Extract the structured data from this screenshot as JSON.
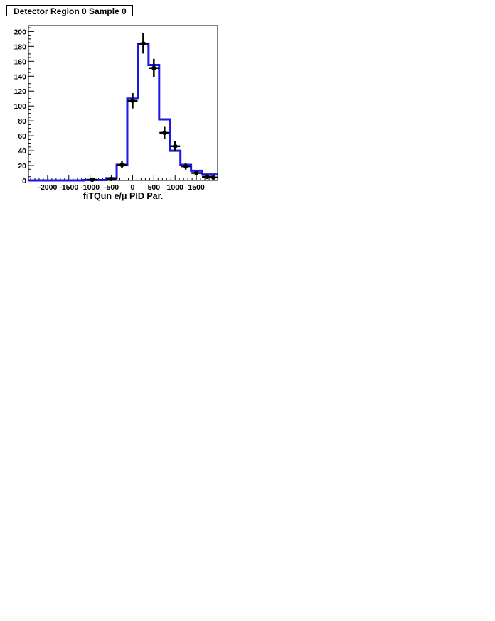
{
  "chart_data": {
    "type": "histogram",
    "title": "Detector Region 0 Sample 0",
    "xlabel": "fiTQun e/μ PID Par.",
    "ylabel": "",
    "xlim": [
      -2450,
      2000
    ],
    "ylim": [
      0,
      208
    ],
    "grid": false,
    "x_ticks": [
      -2000,
      -1500,
      -1000,
      -500,
      0,
      500,
      1000,
      1500
    ],
    "y_ticks": [
      0,
      20,
      40,
      60,
      80,
      100,
      120,
      140,
      160,
      180,
      200
    ],
    "bin_edges": [
      -2450,
      -1150,
      -625,
      -375,
      -125,
      125,
      375,
      625,
      875,
      1125,
      1375,
      1625,
      2000
    ],
    "mc_values": [
      0,
      0.5,
      3,
      21,
      110,
      183,
      155,
      82,
      40,
      21,
      13,
      8
    ],
    "mc_color": "#1a1ae6",
    "data_points": [
      {
        "x": -950,
        "y": 1,
        "err": 1
      },
      {
        "x": -500,
        "y": 2,
        "err": 1.4
      },
      {
        "x": -250,
        "y": 21,
        "err": 4.6
      },
      {
        "x": 0,
        "y": 107,
        "err": 10.3
      },
      {
        "x": 250,
        "y": 184,
        "err": 13.6
      },
      {
        "x": 500,
        "y": 151,
        "err": 12.3
      },
      {
        "x": 750,
        "y": 64,
        "err": 8
      },
      {
        "x": 1000,
        "y": 46,
        "err": 6.8
      },
      {
        "x": 1250,
        "y": 19,
        "err": 4.4
      },
      {
        "x": 1500,
        "y": 10,
        "err": 3.2
      },
      {
        "x": 1750,
        "y": 5,
        "err": 2.2
      },
      {
        "x": 1900,
        "y": 4,
        "err": 2
      }
    ],
    "data_color": "#000000"
  }
}
